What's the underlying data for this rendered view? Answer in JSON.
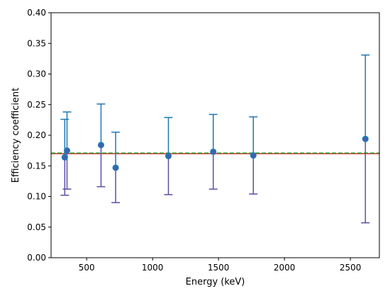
{
  "chart_data": {
    "type": "scatter",
    "xlabel": "Energy (keV)",
    "ylabel": "Efficiency coefficient",
    "xlim": [
      230,
      2720
    ],
    "ylim": [
      0,
      0.4
    ],
    "xticks": [
      500,
      1000,
      1500,
      2000,
      2500
    ],
    "yticks": [
      0.0,
      0.05,
      0.1,
      0.15,
      0.2,
      0.25,
      0.3,
      0.35,
      0.4
    ],
    "xtick_labels": [
      "500",
      "1000",
      "1500",
      "2000",
      "2500"
    ],
    "ytick_labels": [
      "0.00",
      "0.05",
      "0.10",
      "0.15",
      "0.20",
      "0.25",
      "0.30",
      "0.35",
      "0.40"
    ],
    "grid": false,
    "points": [
      {
        "x": 334,
        "y": 0.164,
        "low": 0.102,
        "high": 0.226
      },
      {
        "x": 351,
        "y": 0.175,
        "low": 0.112,
        "high": 0.238
      },
      {
        "x": 609,
        "y": 0.184,
        "low": 0.116,
        "high": 0.251
      },
      {
        "x": 720,
        "y": 0.147,
        "low": 0.09,
        "high": 0.205
      },
      {
        "x": 1120,
        "y": 0.166,
        "low": 0.103,
        "high": 0.229
      },
      {
        "x": 1460,
        "y": 0.173,
        "low": 0.112,
        "high": 0.234
      },
      {
        "x": 1764,
        "y": 0.167,
        "low": 0.104,
        "high": 0.23
      },
      {
        "x": 2614,
        "y": 0.194,
        "low": 0.057,
        "high": 0.331
      }
    ],
    "reference_lines": [
      {
        "y": 0.17,
        "color": "#d62728",
        "style": "solid"
      },
      {
        "y": 0.171,
        "color": "#2ca02c",
        "style": "dashed"
      }
    ],
    "colors": {
      "point": "#1f77b4",
      "point_inner": "#5b4fa8",
      "error_upper": "#1f77b4",
      "error_lower": "#5b4fa8"
    }
  }
}
